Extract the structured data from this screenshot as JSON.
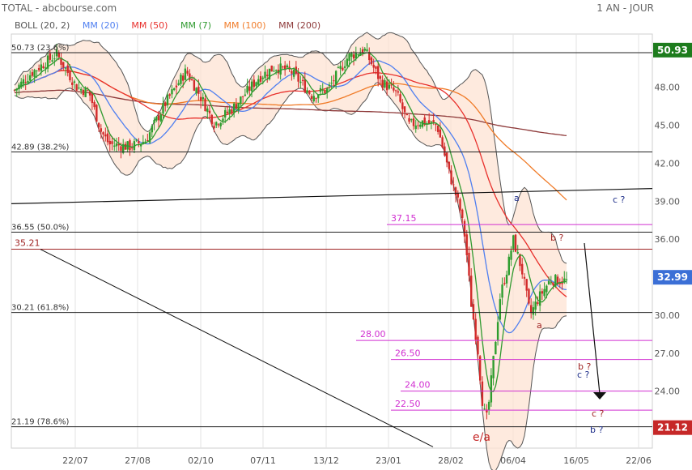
{
  "header": {
    "title": "TOTAL - abcbourse.com",
    "period": "1 AN - JOUR"
  },
  "legend": [
    {
      "name": "BOLL (20, 2)",
      "color": "#555555"
    },
    {
      "name": "MM (20)",
      "color": "#4f7ff0"
    },
    {
      "name": "MM (50)",
      "color": "#e8302c"
    },
    {
      "name": "MM (7)",
      "color": "#2f9a2f"
    },
    {
      "name": "MM (100)",
      "color": "#f07b28"
    },
    {
      "name": "MM (200)",
      "color": "#8e3a3a"
    }
  ],
  "chart_data": {
    "type": "candlestick",
    "xlabel": "",
    "ylabel": "",
    "ylim": [
      19.5,
      52.2
    ],
    "grid": "vertical",
    "x_ticks": [
      "22/07",
      "27/08",
      "02/10",
      "07/11",
      "13/12",
      "23/01",
      "28/02",
      "06/04",
      "16/05",
      "22/06"
    ],
    "y_ticks": [
      21.0,
      24.0,
      27.0,
      30.0,
      33.0,
      36.0,
      39.0,
      42.0,
      45.0,
      48.0
    ],
    "last_price": "32.99",
    "price_labels": [
      {
        "value": 50.93,
        "text": "50.93",
        "color": "#1d7c1d"
      },
      {
        "value": 32.99,
        "text": "32.99",
        "color": "#3b6fd6"
      },
      {
        "value": 21.12,
        "text": "21.12",
        "color": "#c62828"
      }
    ],
    "fib_levels": [
      {
        "value": 50.73,
        "text": "50.73  (23.6%)"
      },
      {
        "value": 42.89,
        "text": "42.89  (38.2%)"
      },
      {
        "value": 36.55,
        "text": "36.55  (50.0%)"
      },
      {
        "value": 30.21,
        "text": "30.21  (61.8%)"
      },
      {
        "value": 21.19,
        "text": "21.19  (78.6%)"
      }
    ],
    "resistance": {
      "value": 35.21,
      "text": "35.21"
    },
    "targets": [
      "37.15",
      "28.00",
      "26.50",
      "24.00",
      "22.50"
    ],
    "annotations": [
      "a",
      "b ?",
      "a",
      "c ?",
      "b ?",
      "c ?",
      "c ?",
      "b ?",
      "e/a"
    ]
  }
}
